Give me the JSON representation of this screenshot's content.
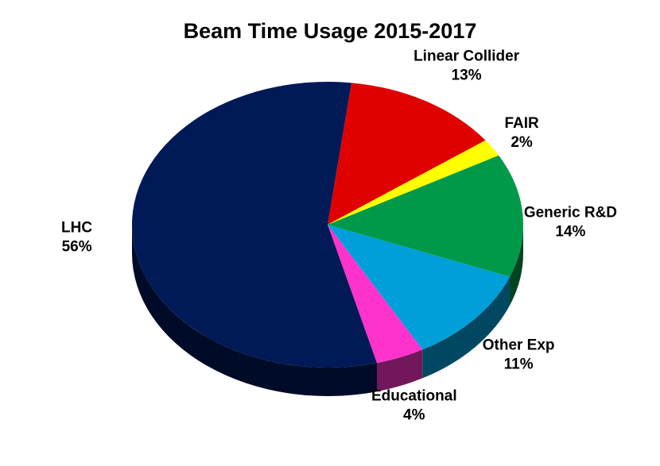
{
  "chart_data": {
    "type": "pie",
    "title": "Beam Time Usage 2015-2017",
    "three_d": true,
    "slices": [
      {
        "name": "Linear Collider",
        "value": 13,
        "label": "13%",
        "color": "#e00000"
      },
      {
        "name": "FAIR",
        "value": 2,
        "label": "2%",
        "color": "#ffff00"
      },
      {
        "name": "Generic R&D",
        "value": 14,
        "label": "14%",
        "color": "#00994a"
      },
      {
        "name": "Other Exp",
        "value": 11,
        "label": "11%",
        "color": "#009fd9"
      },
      {
        "name": "Educational",
        "value": 4,
        "label": "4%",
        "color": "#ff33cc"
      },
      {
        "name": "LHC",
        "value": 56,
        "label": "56%",
        "color": "#001a57"
      }
    ]
  }
}
